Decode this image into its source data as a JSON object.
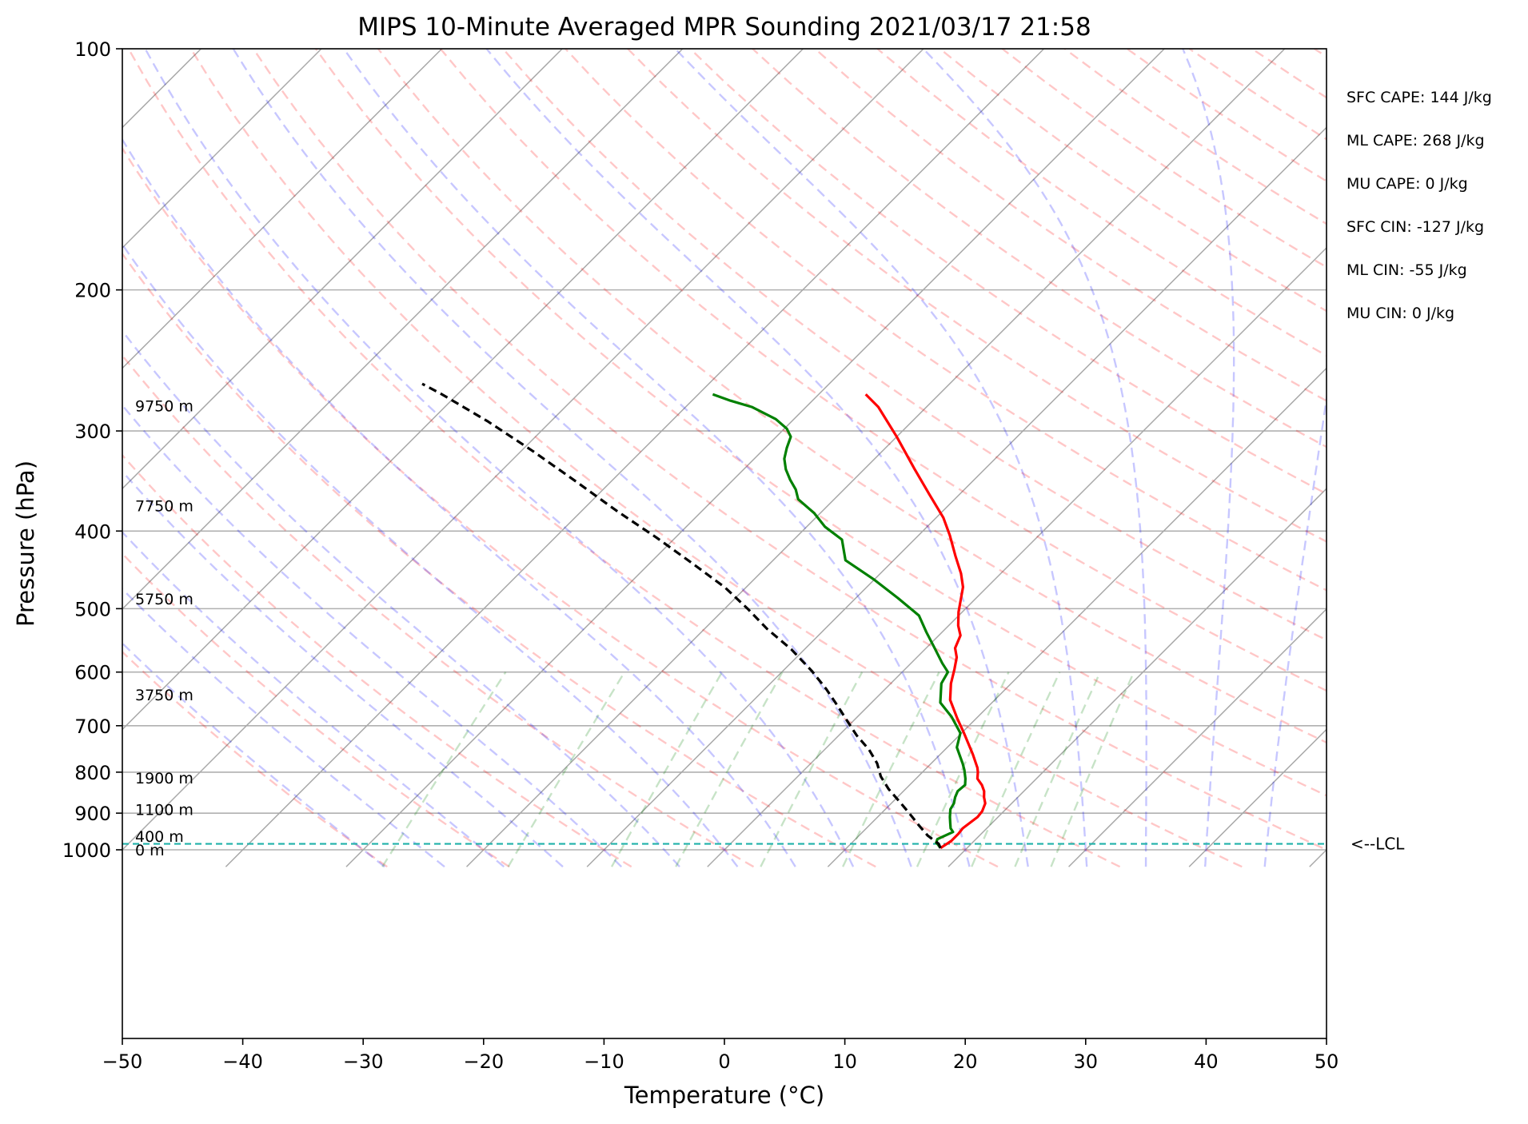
{
  "chart_data": {
    "type": "line",
    "title": "MIPS 10-Minute Averaged MPR Sounding 2021/03/17 21:58",
    "xlabel": "Temperature (°C)",
    "ylabel": "Pressure (hPa)",
    "xlim": [
      -50,
      50
    ],
    "ylim_pressure": [
      1050,
      100
    ],
    "y_scale": "log",
    "skew": "skew-T log-P (45° isotherms)",
    "x_ticks": [
      -50,
      -40,
      -30,
      -20,
      -10,
      0,
      10,
      20,
      30,
      40,
      50
    ],
    "y_ticks": [
      100,
      200,
      300,
      400,
      500,
      600,
      700,
      800,
      900,
      1000
    ],
    "grid": true,
    "background_lines": [
      "isotherms (gray)",
      "dry adiabats (red dashed)",
      "moist adiabats (blue dashed)",
      "mixing ratio (green dashed)"
    ],
    "series": [
      {
        "key": "temperature",
        "color": "#ff0000",
        "points": [
          [
            17.8,
            995
          ],
          [
            18.1,
            975
          ],
          [
            18.1,
            955
          ],
          [
            18.0,
            940
          ],
          [
            18.3,
            910
          ],
          [
            18.2,
            895
          ],
          [
            17.8,
            875
          ],
          [
            17.2,
            860
          ],
          [
            16.7,
            845
          ],
          [
            16.0,
            830
          ],
          [
            15.1,
            815
          ],
          [
            14.6,
            800
          ],
          [
            14.2,
            790
          ],
          [
            12.7,
            760
          ],
          [
            10.2,
            715
          ],
          [
            8.4,
            685
          ],
          [
            6.3,
            650
          ],
          [
            5.0,
            620
          ],
          [
            4.1,
            595
          ],
          [
            3.3,
            575
          ],
          [
            2.4,
            560
          ],
          [
            1.8,
            540
          ],
          [
            0.8,
            525
          ],
          [
            -0.3,
            505
          ],
          [
            -2.0,
            470
          ],
          [
            -3.3,
            452
          ],
          [
            -5.2,
            430
          ],
          [
            -7.4,
            405
          ],
          [
            -9.4,
            385
          ],
          [
            -12.5,
            360
          ],
          [
            -15.8,
            335
          ],
          [
            -20.0,
            305
          ],
          [
            -24.0,
            280
          ],
          [
            -26.1,
            270
          ]
        ]
      },
      {
        "key": "dewpoint",
        "color": "#008000",
        "points": [
          [
            17.8,
            995
          ],
          [
            17.3,
            985
          ],
          [
            17.0,
            980
          ],
          [
            16.8,
            970
          ],
          [
            17.5,
            950
          ],
          [
            17.0,
            940
          ],
          [
            16.5,
            925
          ],
          [
            16.0,
            910
          ],
          [
            15.4,
            890
          ],
          [
            15.2,
            875
          ],
          [
            14.8,
            860
          ],
          [
            14.5,
            845
          ],
          [
            14.6,
            830
          ],
          [
            14.1,
            815
          ],
          [
            13.3,
            795
          ],
          [
            12.6,
            780
          ],
          [
            10.8,
            745
          ],
          [
            9.9,
            715
          ],
          [
            7.8,
            682
          ],
          [
            5.7,
            655
          ],
          [
            4.2,
            620
          ],
          [
            3.8,
            600
          ],
          [
            2.6,
            585
          ],
          [
            0.7,
            560
          ],
          [
            -1.3,
            535
          ],
          [
            -3.3,
            510
          ],
          [
            -6.5,
            485
          ],
          [
            -10.0,
            460
          ],
          [
            -14.0,
            435
          ],
          [
            -16.0,
            410
          ],
          [
            -18.5,
            395
          ],
          [
            -20.5,
            380
          ],
          [
            -23.0,
            365
          ],
          [
            -24.0,
            355
          ],
          [
            -25.3,
            345
          ],
          [
            -26.5,
            335
          ],
          [
            -27.5,
            325
          ],
          [
            -28.2,
            315
          ],
          [
            -28.8,
            305
          ],
          [
            -29.8,
            298
          ],
          [
            -31.5,
            290
          ],
          [
            -34.5,
            280
          ],
          [
            -36.8,
            275
          ],
          [
            -38.8,
            270
          ]
        ]
      },
      {
        "key": "parcel",
        "color": "#000000",
        "style": "dashed",
        "points": [
          [
            17.8,
            995
          ],
          [
            17.3,
            983
          ],
          [
            15.7,
            960
          ],
          [
            14.0,
            930
          ],
          [
            12.3,
            900
          ],
          [
            10.5,
            870
          ],
          [
            8.6,
            840
          ],
          [
            6.9,
            810
          ],
          [
            5.5,
            780
          ],
          [
            3.7,
            750
          ],
          [
            1.5,
            720
          ],
          [
            -0.4,
            692
          ],
          [
            -2.5,
            662
          ],
          [
            -4.9,
            630
          ],
          [
            -7.6,
            598
          ],
          [
            -11.1,
            562
          ],
          [
            -14.8,
            530
          ],
          [
            -18.1,
            500
          ],
          [
            -21.8,
            470
          ],
          [
            -26.6,
            438
          ],
          [
            -31.5,
            408
          ],
          [
            -37.0,
            378
          ],
          [
            -42.9,
            347
          ],
          [
            -49.0,
            318
          ],
          [
            -55.2,
            292
          ],
          [
            -61.3,
            270
          ],
          [
            -63.8,
            262
          ]
        ]
      }
    ],
    "lcl": {
      "pressure": 983,
      "label": "<--LCL",
      "color": "#20b2aa"
    },
    "height_labels": [
      {
        "text": "0 m",
        "pressure": 1000
      },
      {
        "text": "400 m",
        "pressure": 962
      },
      {
        "text": "1100 m",
        "pressure": 890
      },
      {
        "text": "1900 m",
        "pressure": 813
      },
      {
        "text": "3750 m",
        "pressure": 640
      },
      {
        "text": "5750 m",
        "pressure": 486
      },
      {
        "text": "7750 m",
        "pressure": 372
      },
      {
        "text": "9750 m",
        "pressure": 279
      }
    ],
    "stats": [
      "SFC CAPE: 144 J/kg",
      "ML CAPE: 268 J/kg",
      "MU CAPE: 0 J/kg",
      "SFC CIN: -127 J/kg",
      "ML CIN: -55 J/kg",
      "MU CIN: 0 J/kg"
    ]
  }
}
